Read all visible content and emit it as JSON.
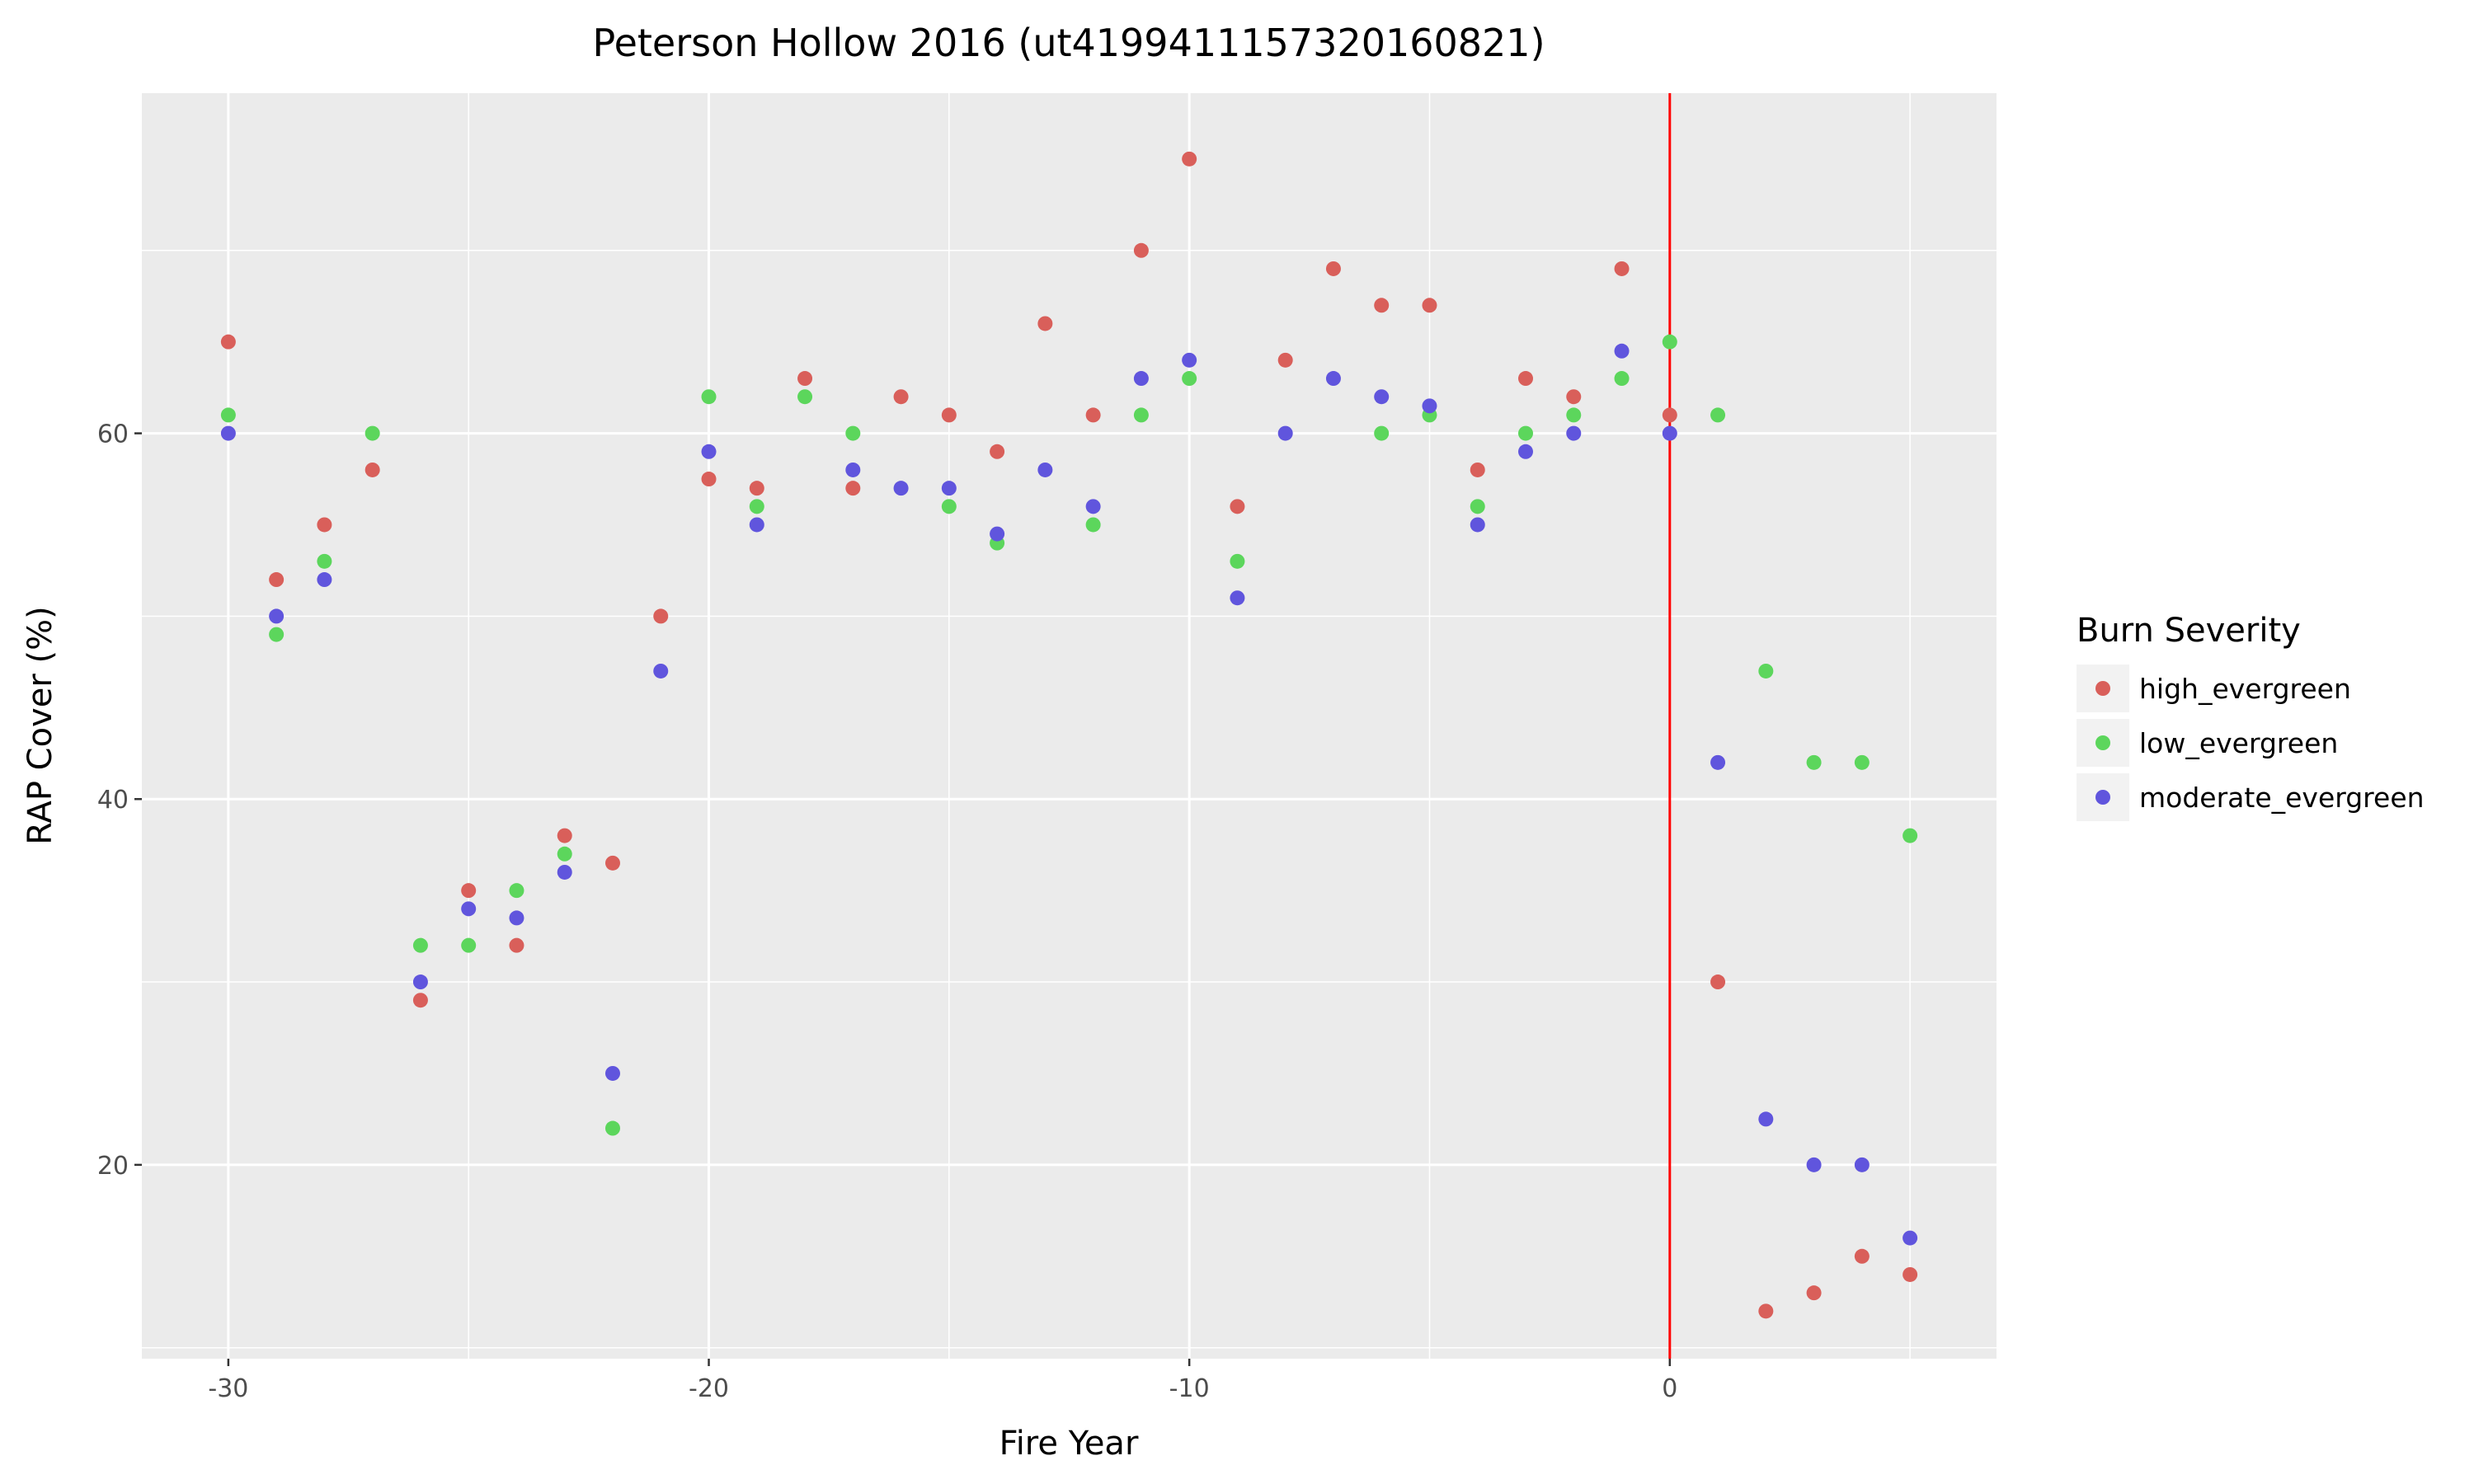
{
  "chart_data": {
    "type": "scatter",
    "title": "Peterson Hollow 2016 (ut4199411157320160821)",
    "xlabel": "Fire Year",
    "ylabel": "RAP Cover (%)",
    "xlim": [
      -31.8,
      6.8
    ],
    "ylim": [
      9.4,
      78.6
    ],
    "xticks": [
      -30,
      -20,
      -10,
      0
    ],
    "yticks": [
      20,
      40,
      60
    ],
    "grid": true,
    "vline": {
      "x": 0,
      "color": "#ff0000"
    },
    "legend": {
      "title": "Burn Severity",
      "position": "right"
    },
    "series": [
      {
        "name": "high_evergreen",
        "color": "#d95f5a",
        "points": [
          [
            -30,
            65
          ],
          [
            -29,
            52
          ],
          [
            -28,
            55
          ],
          [
            -27,
            58
          ],
          [
            -26,
            29
          ],
          [
            -25,
            35
          ],
          [
            -24,
            32
          ],
          [
            -23,
            38
          ],
          [
            -22,
            36.5
          ],
          [
            -21,
            50
          ],
          [
            -20,
            57.5
          ],
          [
            -19,
            57
          ],
          [
            -18,
            63
          ],
          [
            -17,
            57
          ],
          [
            -16,
            62
          ],
          [
            -15,
            61
          ],
          [
            -14,
            59
          ],
          [
            -13,
            66
          ],
          [
            -12,
            61
          ],
          [
            -11,
            70
          ],
          [
            -10,
            75
          ],
          [
            -9,
            56
          ],
          [
            -8,
            64
          ],
          [
            -7,
            69
          ],
          [
            -6,
            67
          ],
          [
            -5,
            67
          ],
          [
            -4,
            58
          ],
          [
            -3,
            63
          ],
          [
            -2,
            62
          ],
          [
            -1,
            69
          ],
          [
            0,
            61
          ],
          [
            1,
            30
          ],
          [
            2,
            12
          ],
          [
            3,
            13
          ],
          [
            4,
            15
          ],
          [
            5,
            14
          ]
        ]
      },
      {
        "name": "low_evergreen",
        "color": "#5cd65c",
        "points": [
          [
            -30,
            61
          ],
          [
            -29,
            49
          ],
          [
            -28,
            53
          ],
          [
            -27,
            60
          ],
          [
            -26,
            32
          ],
          [
            -25,
            32
          ],
          [
            -24,
            35
          ],
          [
            -23,
            37
          ],
          [
            -22,
            22
          ],
          [
            -20,
            62
          ],
          [
            -19,
            56
          ],
          [
            -18,
            62
          ],
          [
            -17,
            60
          ],
          [
            -15,
            56
          ],
          [
            -14,
            54
          ],
          [
            -12,
            55
          ],
          [
            -11,
            61
          ],
          [
            -10,
            63
          ],
          [
            -9,
            53
          ],
          [
            -6,
            60
          ],
          [
            -5,
            61
          ],
          [
            -4,
            56
          ],
          [
            -3,
            60
          ],
          [
            -2,
            61
          ],
          [
            -1,
            63
          ],
          [
            0,
            65
          ],
          [
            1,
            61
          ],
          [
            2,
            47
          ],
          [
            3,
            42
          ],
          [
            4,
            42
          ],
          [
            5,
            38
          ]
        ]
      },
      {
        "name": "moderate_evergreen",
        "color": "#6055dd",
        "points": [
          [
            -30,
            60
          ],
          [
            -29,
            50
          ],
          [
            -28,
            52
          ],
          [
            -26,
            30
          ],
          [
            -25,
            34
          ],
          [
            -24,
            33.5
          ],
          [
            -23,
            36
          ],
          [
            -22,
            25
          ],
          [
            -21,
            47
          ],
          [
            -20,
            59
          ],
          [
            -19,
            55
          ],
          [
            -17,
            58
          ],
          [
            -16,
            57
          ],
          [
            -15,
            57
          ],
          [
            -14,
            54.5
          ],
          [
            -13,
            58
          ],
          [
            -12,
            56
          ],
          [
            -11,
            63
          ],
          [
            -10,
            64
          ],
          [
            -9,
            51
          ],
          [
            -8,
            60
          ],
          [
            -7,
            63
          ],
          [
            -6,
            62
          ],
          [
            -5,
            61.5
          ],
          [
            -4,
            55
          ],
          [
            -3,
            59
          ],
          [
            -2,
            60
          ],
          [
            -1,
            64.5
          ],
          [
            0,
            60
          ],
          [
            1,
            42
          ],
          [
            2,
            22.5
          ],
          [
            3,
            20
          ],
          [
            4,
            20
          ],
          [
            5,
            16
          ]
        ]
      }
    ]
  }
}
